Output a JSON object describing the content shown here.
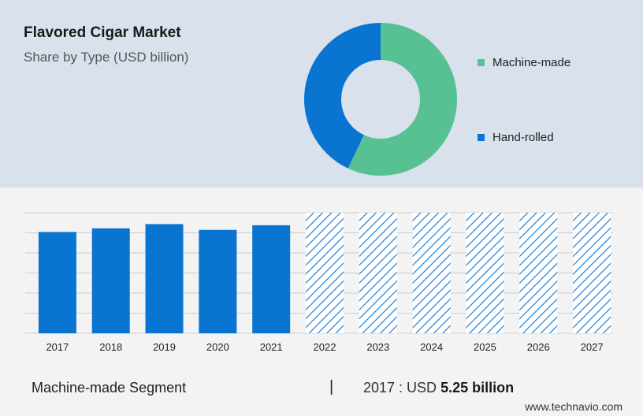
{
  "header": {
    "title": "Flavored Cigar Market",
    "subtitle": "Share by Type (USD billion)"
  },
  "chart_data": [
    {
      "type": "pie",
      "variant": "donut",
      "title": "Share by Type (USD billion)",
      "slices": [
        {
          "label": "Machine-made",
          "value": 57,
          "color": "#57c194"
        },
        {
          "label": "Hand-rolled",
          "value": 43,
          "color": "#0a74d1"
        }
      ],
      "legend_position": "right"
    },
    {
      "type": "bar",
      "categories": [
        "2017",
        "2018",
        "2019",
        "2020",
        "2021",
        "2022",
        "2023",
        "2024",
        "2025",
        "2026",
        "2027"
      ],
      "values": [
        5.25,
        5.44,
        5.66,
        5.36,
        5.6,
        null,
        null,
        null,
        null,
        null,
        null
      ],
      "forecast_categories": [
        "2022",
        "2023",
        "2024",
        "2025",
        "2026",
        "2027"
      ],
      "ylim": [
        0,
        6.25
      ],
      "grid": true,
      "bar_color": "#0a74d1",
      "forecast_color": "#0a74d1"
    }
  ],
  "footer": {
    "segment_label": "Machine-made Segment",
    "separator": "|",
    "value_prefix": "2017 : USD",
    "value_bold": "5.25 billion"
  },
  "watermark": "www.technavio.com"
}
